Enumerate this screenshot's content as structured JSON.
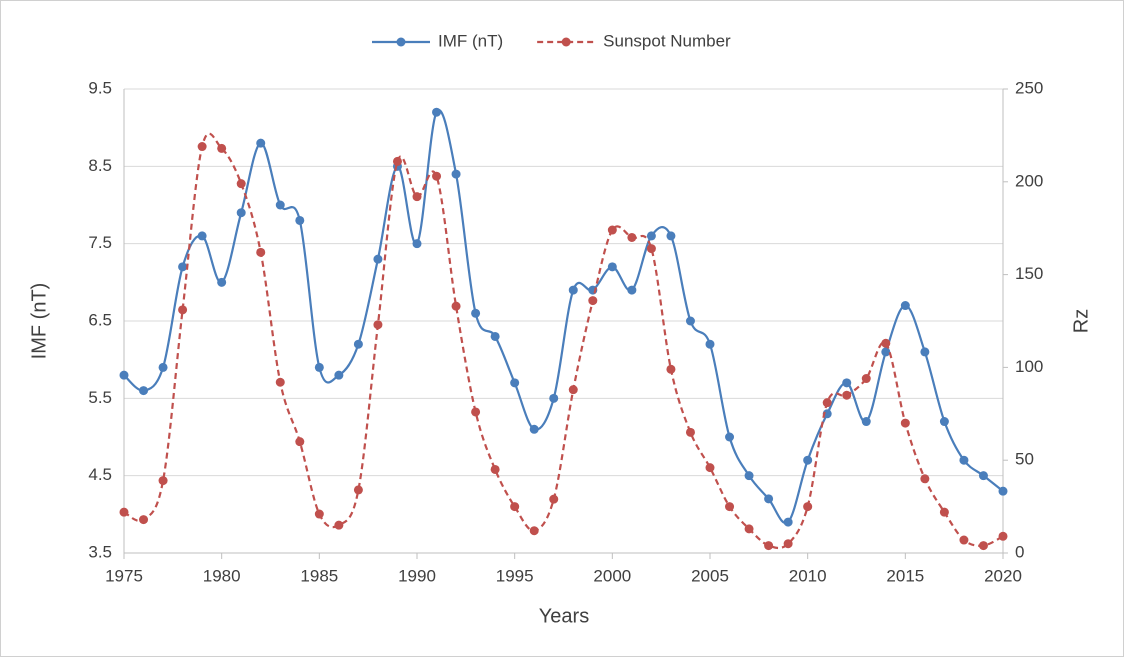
{
  "chart_data": {
    "type": "line",
    "x_label": "Years",
    "y_label": "IMF (nT)",
    "y2_label": "Rz",
    "x": [
      1975,
      1976,
      1977,
      1978,
      1979,
      1980,
      1981,
      1982,
      1983,
      1984,
      1985,
      1986,
      1987,
      1988,
      1989,
      1990,
      1991,
      1992,
      1993,
      1994,
      1995,
      1996,
      1997,
      1998,
      1999,
      2000,
      2001,
      2002,
      2003,
      2004,
      2005,
      2006,
      2007,
      2008,
      2009,
      2010,
      2011,
      2012,
      2013,
      2014,
      2015,
      2016,
      2017,
      2018,
      2019,
      2020
    ],
    "series": [
      {
        "name": "IMF (nT)",
        "color": "#4a7ebb",
        "line_style": "solid",
        "smooth": true,
        "values": [
          5.8,
          5.6,
          5.9,
          7.2,
          7.6,
          7.0,
          7.9,
          8.8,
          8.0,
          7.8,
          5.9,
          5.8,
          6.2,
          7.3,
          8.5,
          7.5,
          9.2,
          8.4,
          6.6,
          6.3,
          5.7,
          5.1,
          5.5,
          6.9,
          6.9,
          7.2,
          6.9,
          7.6,
          7.6,
          6.5,
          6.2,
          5.0,
          4.5,
          4.2,
          3.9,
          4.7,
          5.3,
          5.7,
          5.2,
          6.1,
          6.7,
          6.1,
          5.2,
          4.7,
          4.5,
          4.3
        ]
      },
      {
        "name": "Sunspot Number",
        "color": "#c0504d",
        "line_style": "dashed",
        "smooth": true,
        "axis": "y2",
        "values": [
          22,
          18,
          39,
          131,
          219,
          218,
          199,
          162,
          92,
          60,
          21,
          15,
          34,
          123,
          211,
          192,
          203,
          133,
          76,
          45,
          25,
          12,
          29,
          88,
          136,
          174,
          170,
          164,
          99,
          65,
          46,
          25,
          13,
          4,
          5,
          25,
          81,
          85,
          94,
          113,
          70,
          40,
          22,
          7,
          4,
          9
        ]
      }
    ],
    "xlim": [
      1975,
      2020
    ],
    "xticks": [
      1975,
      1980,
      1985,
      1990,
      1995,
      2000,
      2005,
      2010,
      2015,
      2020
    ],
    "ylim": [
      3.5,
      9.5
    ],
    "yticks": [
      3.5,
      4.5,
      5.5,
      6.5,
      7.5,
      8.5,
      9.5
    ],
    "y2lim": [
      0,
      250
    ],
    "y2ticks": [
      0,
      50,
      100,
      150,
      200,
      250
    ],
    "grid": true,
    "legend": "top"
  }
}
